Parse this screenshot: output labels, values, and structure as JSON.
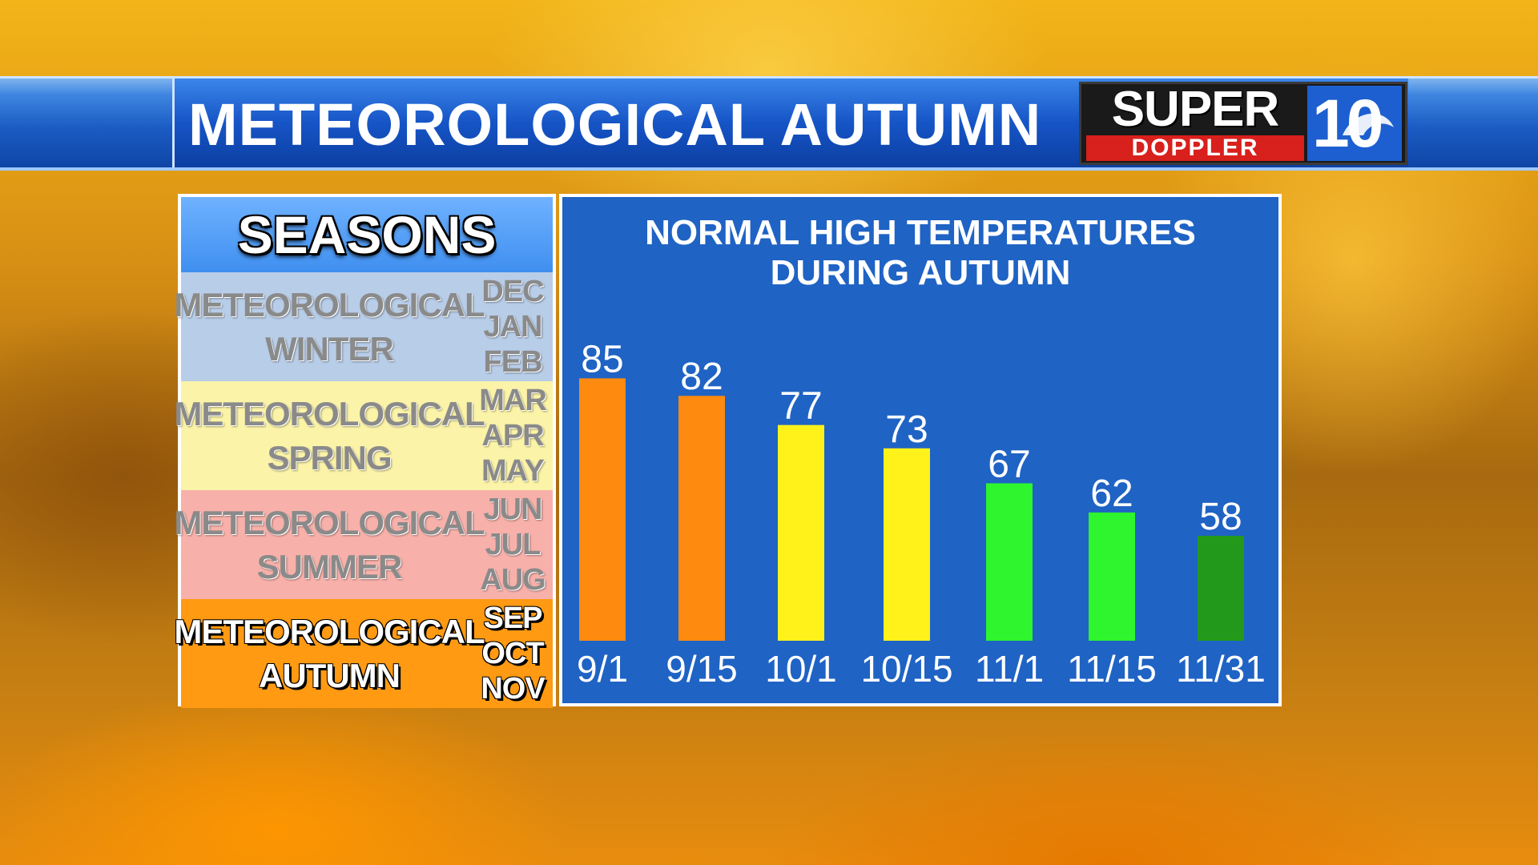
{
  "header": {
    "title": "METEOROLOGICAL AUTUMN"
  },
  "logo": {
    "line1": "SUPER",
    "line2": "DOPPLER",
    "channel": "10",
    "brand_colors": {
      "red": "#d8201c",
      "blue": "#1d5fd0",
      "black": "#1a1a1a"
    }
  },
  "seasons": {
    "title": "SEASONS",
    "rows": [
      {
        "name": "METEOROLOGICAL\nWINTER",
        "months": [
          "DEC",
          "JAN",
          "FEB"
        ],
        "color": "#b8cde8",
        "active": false
      },
      {
        "name": "METEOROLOGICAL\nSPRING",
        "months": [
          "MAR",
          "APR",
          "MAY"
        ],
        "color": "#fbf3a8",
        "active": false
      },
      {
        "name": "METEOROLOGICAL\nSUMMER",
        "months": [
          "JUN",
          "JUL",
          "AUG"
        ],
        "color": "#f8b1aa",
        "active": false
      },
      {
        "name": "METEOROLOGICAL\nAUTUMN",
        "months": [
          "SEP",
          "OCT",
          "NOV"
        ],
        "color": "#ff9a12",
        "active": true
      }
    ]
  },
  "chart_data": {
    "type": "bar",
    "title": "NORMAL HIGH TEMPERATURES\nDURING AUTUMN",
    "categories": [
      "9/1",
      "9/15",
      "10/1",
      "10/15",
      "11/1",
      "11/15",
      "11/31"
    ],
    "values": [
      85,
      82,
      77,
      73,
      67,
      62,
      58
    ],
    "bar_colors": [
      "#ff8a10",
      "#ff8a10",
      "#fff21a",
      "#fff21a",
      "#2ef52e",
      "#2ef52e",
      "#22991b"
    ],
    "ylim": [
      40,
      90
    ],
    "grid": false,
    "background": "#1f63c4"
  }
}
